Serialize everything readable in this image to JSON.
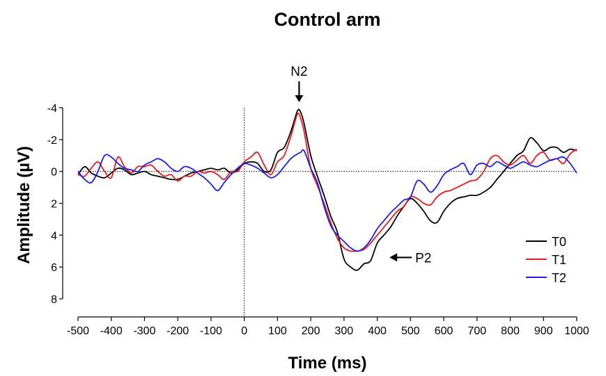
{
  "chart_data": {
    "type": "line",
    "title": "Control arm",
    "xlabel": "Time (ms)",
    "ylabel": "Amplitude (µV)",
    "xlim": [
      -500,
      1000
    ],
    "ylim": [
      -4,
      8
    ],
    "y_inverted": true,
    "x_ticks": [
      -500,
      -400,
      -300,
      -200,
      -100,
      0,
      100,
      200,
      300,
      400,
      500,
      600,
      700,
      800,
      900,
      1000
    ],
    "y_ticks": [
      -4,
      -2,
      0,
      2,
      4,
      6,
      8
    ],
    "grid": false,
    "reference_lines": [
      "y = 0 (dotted)",
      "x = 0 (dotted)"
    ],
    "legend_position": "bottom-right",
    "annotations": [
      {
        "text": "N2",
        "x": 165,
        "y": -4.0,
        "arrow": "down"
      },
      {
        "text": "P2",
        "x": 420,
        "y": 5.4,
        "arrow": "left"
      }
    ],
    "series": [
      {
        "name": "T0",
        "color": "#000000",
        "x": [
          -500,
          -480,
          -460,
          -440,
          -420,
          -400,
          -380,
          -360,
          -340,
          -320,
          -300,
          -280,
          -260,
          -240,
          -220,
          -200,
          -180,
          -160,
          -140,
          -120,
          -100,
          -80,
          -60,
          -40,
          -20,
          0,
          20,
          40,
          60,
          80,
          100,
          120,
          140,
          160,
          170,
          180,
          200,
          220,
          240,
          260,
          280,
          300,
          320,
          340,
          360,
          380,
          400,
          420,
          440,
          460,
          480,
          500,
          520,
          540,
          560,
          580,
          600,
          620,
          640,
          660,
          680,
          700,
          720,
          740,
          760,
          780,
          800,
          820,
          840,
          860,
          880,
          900,
          920,
          940,
          960,
          980,
          1000
        ],
        "y": [
          0.2,
          -0.3,
          0.1,
          0.3,
          0.4,
          0.1,
          -0.2,
          -0.1,
          0.2,
          0.1,
          0.0,
          0.2,
          0.3,
          0.4,
          0.5,
          0.5,
          0.3,
          0.1,
          0.0,
          -0.1,
          -0.2,
          -0.1,
          -0.2,
          0.1,
          -0.1,
          -0.5,
          -0.6,
          -0.5,
          0.0,
          -0.1,
          -1.2,
          -1.5,
          -2.5,
          -3.8,
          -3.7,
          -3.0,
          -1.0,
          0.3,
          1.5,
          2.8,
          3.8,
          5.5,
          6.0,
          6.2,
          5.8,
          5.6,
          4.5,
          4.0,
          3.5,
          2.8,
          2.2,
          1.7,
          2.0,
          2.5,
          3.1,
          3.2,
          2.5,
          2.0,
          1.7,
          1.6,
          1.5,
          1.5,
          1.3,
          1.0,
          0.5,
          0.0,
          -0.5,
          -1.0,
          -1.3,
          -2.1,
          -1.8,
          -1.3,
          -1.5,
          -1.5,
          -1.2,
          -1.4,
          -1.3
        ]
      },
      {
        "name": "T1",
        "color": "#e8191c",
        "x": [
          -500,
          -480,
          -460,
          -440,
          -420,
          -400,
          -380,
          -360,
          -340,
          -320,
          -300,
          -280,
          -260,
          -240,
          -220,
          -200,
          -180,
          -160,
          -140,
          -120,
          -100,
          -80,
          -60,
          -40,
          -20,
          0,
          20,
          40,
          60,
          80,
          100,
          120,
          140,
          160,
          170,
          180,
          200,
          220,
          240,
          260,
          280,
          300,
          320,
          340,
          360,
          380,
          400,
          420,
          440,
          460,
          480,
          500,
          520,
          540,
          560,
          580,
          600,
          620,
          640,
          660,
          680,
          700,
          720,
          740,
          760,
          780,
          800,
          820,
          840,
          860,
          880,
          900,
          920,
          940,
          960,
          980,
          1000
        ],
        "y": [
          0.2,
          0.3,
          -0.2,
          -0.6,
          0.0,
          0.4,
          -0.9,
          -0.3,
          0.1,
          -0.3,
          -0.3,
          -0.4,
          0.0,
          0.3,
          0.2,
          0.6,
          0.3,
          0.3,
          0.0,
          0.1,
          0.0,
          0.2,
          0.5,
          0.0,
          0.0,
          -0.6,
          -0.9,
          -1.2,
          -0.4,
          0.2,
          -0.6,
          -1.0,
          -2.2,
          -3.6,
          -3.3,
          -2.5,
          -0.2,
          0.9,
          2.0,
          3.2,
          4.2,
          4.8,
          5.0,
          5.0,
          4.9,
          4.5,
          4.0,
          3.5,
          3.0,
          2.5,
          2.2,
          1.6,
          1.7,
          2.0,
          2.1,
          1.6,
          1.3,
          1.2,
          1.0,
          0.8,
          0.6,
          0.5,
          0.0,
          -0.8,
          -1.0,
          -0.6,
          -0.4,
          -0.7,
          -1.0,
          -0.5,
          -1.0,
          -1.2,
          -0.7,
          -0.8,
          -0.5,
          -1.1,
          -1.4
        ]
      },
      {
        "name": "T2",
        "color": "#1c1cf0",
        "x": [
          -500,
          -480,
          -460,
          -440,
          -420,
          -400,
          -380,
          -360,
          -340,
          -320,
          -300,
          -280,
          -260,
          -240,
          -220,
          -200,
          -180,
          -160,
          -140,
          -120,
          -100,
          -80,
          -60,
          -40,
          -20,
          0,
          20,
          40,
          60,
          80,
          100,
          120,
          140,
          160,
          170,
          180,
          200,
          220,
          240,
          260,
          280,
          300,
          320,
          340,
          360,
          380,
          400,
          420,
          440,
          460,
          480,
          500,
          520,
          540,
          560,
          580,
          600,
          620,
          640,
          660,
          680,
          700,
          720,
          740,
          760,
          780,
          800,
          820,
          840,
          860,
          880,
          900,
          920,
          940,
          960,
          980,
          1000
        ],
        "y": [
          0.0,
          0.5,
          0.7,
          0.0,
          -1.0,
          -0.9,
          -0.5,
          -0.2,
          -0.1,
          0.0,
          -0.4,
          -0.6,
          -0.8,
          -0.6,
          -0.2,
          0.0,
          -0.3,
          -0.2,
          0.1,
          0.4,
          0.8,
          1.2,
          0.7,
          0.2,
          -0.2,
          -0.5,
          -0.4,
          -0.2,
          0.1,
          0.4,
          0.2,
          -0.3,
          -0.8,
          -1.1,
          -1.2,
          -1.3,
          -0.2,
          0.7,
          2.2,
          3.4,
          4.0,
          4.4,
          4.8,
          5.0,
          4.8,
          4.3,
          3.6,
          3.1,
          2.6,
          2.2,
          1.8,
          1.6,
          0.6,
          0.8,
          1.3,
          0.9,
          0.2,
          -0.1,
          -0.3,
          -0.5,
          0.2,
          -0.4,
          -0.5,
          -0.3,
          -0.6,
          -0.4,
          -0.2,
          -0.4,
          -0.6,
          -0.4,
          -0.3,
          -0.5,
          -0.7,
          -0.8,
          -0.9,
          -0.5,
          0.1
        ]
      }
    ]
  }
}
